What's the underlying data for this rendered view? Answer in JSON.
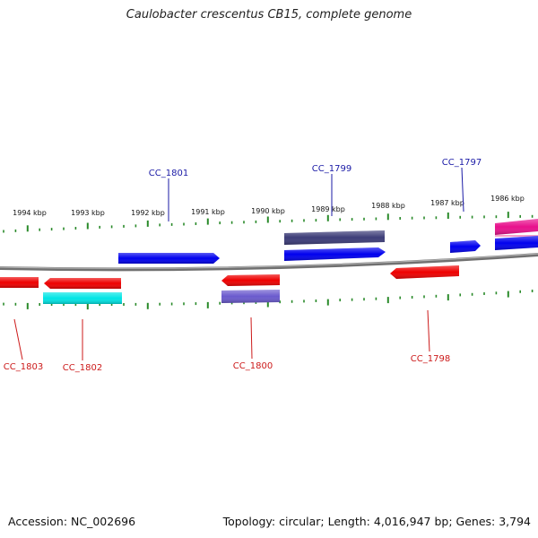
{
  "title": "Caulobacter crescentus CB15, complete genome",
  "footer": {
    "accession": "Accession: NC_002696",
    "summary": "Topology: circular; Length: 4,016,947 bp; Genes: 3,794"
  },
  "colors": {
    "backbone": "#808080",
    "tick": "#2a8a2a",
    "scale_text": "#111111",
    "label_top": "#1a1aa6",
    "label_bottom": "#cc1a1a"
  },
  "scale_labels": [
    "1994 kbp",
    "1993 kbp",
    "1992 kbp",
    "1991 kbp",
    "1990 kbp",
    "1989 kbp",
    "1988 kbp",
    "1987 kbp",
    "1986 kbp"
  ],
  "gene_labels_top": [
    "CC_1801",
    "CC_1799",
    "CC_1797"
  ],
  "gene_labels_bottom": [
    "CC_1803",
    "CC_1802",
    "CC_1800",
    "CC_1798"
  ],
  "features": [
    {
      "id": "f1",
      "color": "#0000ee",
      "strand": "+"
    },
    {
      "id": "f2",
      "color": "#404080",
      "strand": "none"
    },
    {
      "id": "f3",
      "color": "#0000ee",
      "strand": "+"
    },
    {
      "id": "f4",
      "color": "#0000ee",
      "strand": "+"
    },
    {
      "id": "f5",
      "color": "#e8108c",
      "strand": "none"
    },
    {
      "id": "f6",
      "color": "#0000ee",
      "strand": "+"
    },
    {
      "id": "f7",
      "color": "#ee0000",
      "strand": "-"
    },
    {
      "id": "f8",
      "color": "#ee0000",
      "strand": "-"
    },
    {
      "id": "f9",
      "color": "#00e8e8",
      "strand": "none"
    },
    {
      "id": "f10",
      "color": "#ee0000",
      "strand": "-"
    },
    {
      "id": "f11",
      "color": "#6a5acd",
      "strand": "none"
    },
    {
      "id": "f12",
      "color": "#ee0000",
      "strand": "-"
    }
  ]
}
